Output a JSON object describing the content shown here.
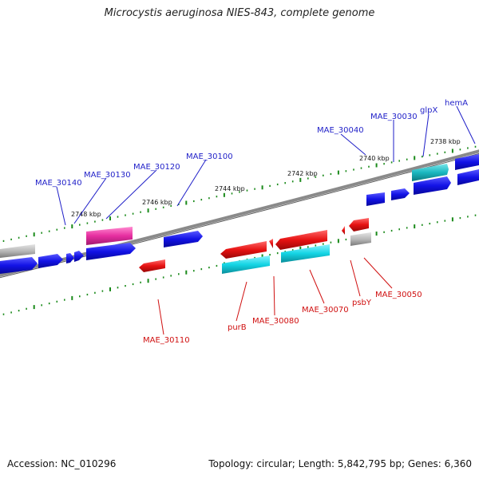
{
  "title": "Microcystis aeruginosa NIES-843, complete genome",
  "footer": {
    "accession": "Accession: NC_010296",
    "summary": "Topology: circular; Length: 5,842,795 bp; Genes: 6,360"
  },
  "ruler_labels": [
    "2738 kbp",
    "2740 kbp",
    "2742 kbp",
    "2744 kbp",
    "2746 kbp",
    "2748 kbp"
  ],
  "gene_labels_forward": [
    "hemA",
    "glpX",
    "MAE_30030",
    "MAE_30040",
    "MAE_30100",
    "MAE_30120",
    "MAE_30130",
    "MAE_30140"
  ],
  "gene_labels_reverse": [
    "MAE_30050",
    "psbY",
    "MAE_30070",
    "MAE_30080",
    "purB",
    "MAE_30110"
  ],
  "colors": {
    "forward_gene": "#1212e6",
    "reverse_gene": "#e61212",
    "forward_rna": "#e62ea0",
    "cyan_feature": "#14d4e4",
    "grey_feature": "#b8b8b8",
    "backbone": "#808080",
    "tick": "#1a8a1a"
  }
}
